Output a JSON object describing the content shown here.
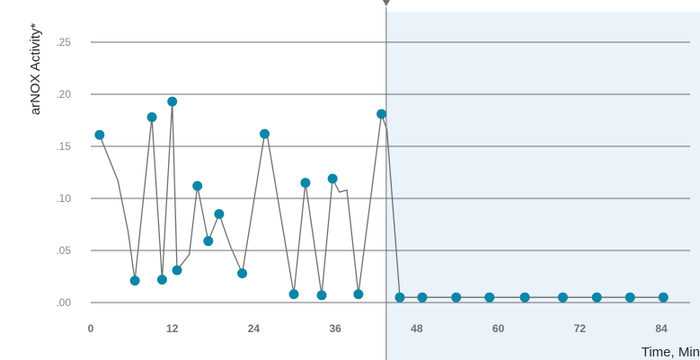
{
  "chart_data": {
    "type": "line",
    "title": "",
    "ylabel": "arNOX Activity*",
    "xlabel": "Time, Min",
    "xlim": [
      -2,
      89
    ],
    "ylim": [
      0,
      0.25
    ],
    "x_ticks": [
      0,
      12,
      24,
      36,
      48,
      60,
      72,
      84
    ],
    "x_tick_labels": [
      "0",
      "12",
      "24",
      "36",
      "48",
      "60",
      "72",
      "84"
    ],
    "y_ticks": [
      0,
      0.05,
      0.1,
      0.15,
      0.2,
      0.25
    ],
    "y_tick_labels": [
      ".00",
      ".05",
      ".10",
      ".15",
      ".20",
      ".25"
    ],
    "grid": "horizontal",
    "treatment_start_x": 43.5,
    "series": [
      {
        "color": "#0a86a8",
        "line_color": "#6f6f6f",
        "x": [
          1.3,
          4.0,
          5.5,
          6.5,
          9.0,
          10.5,
          12.0,
          12.7,
          14.5,
          15.7,
          17.3,
          18.9,
          20.5,
          22.3,
          25.6,
          26.0,
          29.9,
          31.6,
          34.0,
          35.6,
          36.6,
          37.7,
          39.4,
          42.8,
          43.6,
          45.5,
          48.8,
          53.8,
          58.7,
          63.9,
          69.5,
          74.5,
          79.4,
          84.3
        ],
        "y": [
          0.161,
          0.117,
          0.068,
          0.021,
          0.178,
          0.022,
          0.193,
          0.031,
          0.046,
          0.112,
          0.059,
          0.085,
          0.055,
          0.028,
          0.162,
          0.16,
          0.008,
          0.115,
          0.007,
          0.119,
          0.106,
          0.108,
          0.008,
          0.181,
          0.166,
          0.005,
          0.005,
          0.005,
          0.005,
          0.005,
          0.005,
          0.005,
          0.005,
          0.005
        ],
        "marker": [
          true,
          false,
          false,
          true,
          true,
          true,
          true,
          true,
          false,
          true,
          true,
          true,
          false,
          true,
          true,
          false,
          true,
          true,
          true,
          true,
          false,
          false,
          true,
          true,
          false,
          true,
          true,
          true,
          true,
          true,
          true,
          true,
          true,
          true
        ]
      }
    ]
  },
  "colors": {
    "treatment_region": "#eaf3fa",
    "marker": "#0a86a8",
    "line": "#6f6f6f",
    "grid": "#6f6f6f"
  }
}
